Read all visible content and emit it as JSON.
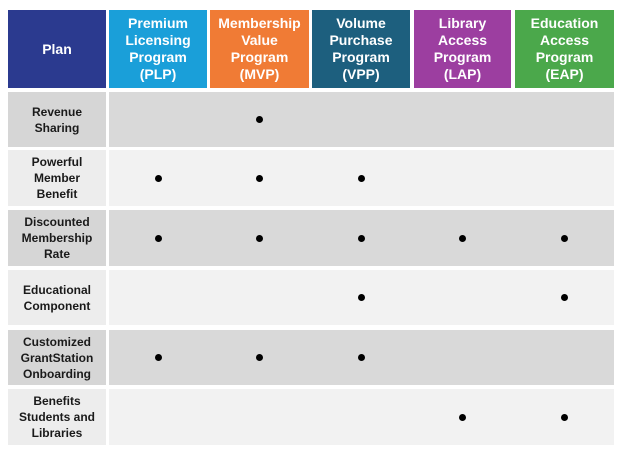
{
  "table": {
    "header": [
      "Plan",
      "Premium Licensing Program (PLP)",
      "Membership Value Program (MVP)",
      "Volume Purchase Program (VPP)",
      "Library Access Program (LAP)",
      "Education Access Program (EAP)"
    ],
    "rows": [
      {
        "label": "Revenue Sharing",
        "cells": [
          false,
          true,
          false,
          false,
          false
        ]
      },
      {
        "label": "Powerful Member Benefit",
        "cells": [
          true,
          true,
          true,
          false,
          false
        ]
      },
      {
        "label": "Discounted Membership Rate",
        "cells": [
          true,
          true,
          true,
          true,
          true
        ]
      },
      {
        "label": "Educational Component",
        "cells": [
          false,
          false,
          true,
          false,
          true
        ]
      },
      {
        "label": "Customized GrantStation Onboarding",
        "cells": [
          true,
          true,
          true,
          false,
          false
        ]
      },
      {
        "label": "Benefits Students and Libraries",
        "cells": [
          false,
          false,
          false,
          true,
          true
        ]
      }
    ]
  }
}
